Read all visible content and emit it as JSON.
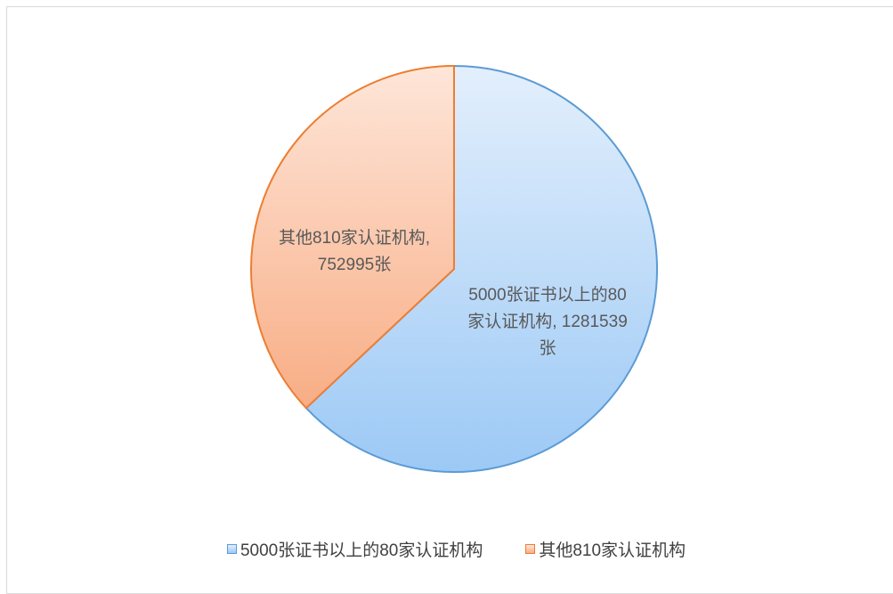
{
  "chart_data": {
    "type": "pie",
    "categories": [
      "5000张证书以上的80家认证机构",
      "其他810家认证机构"
    ],
    "values": [
      1281539,
      752995
    ],
    "value_labels": [
      "5000张证书以上的80家认证机构, 1281539张",
      "其他810家认证机构, 752995张"
    ],
    "colors": [
      "#5b9bd5",
      "#ed7d31"
    ],
    "legend": "bottom"
  }
}
